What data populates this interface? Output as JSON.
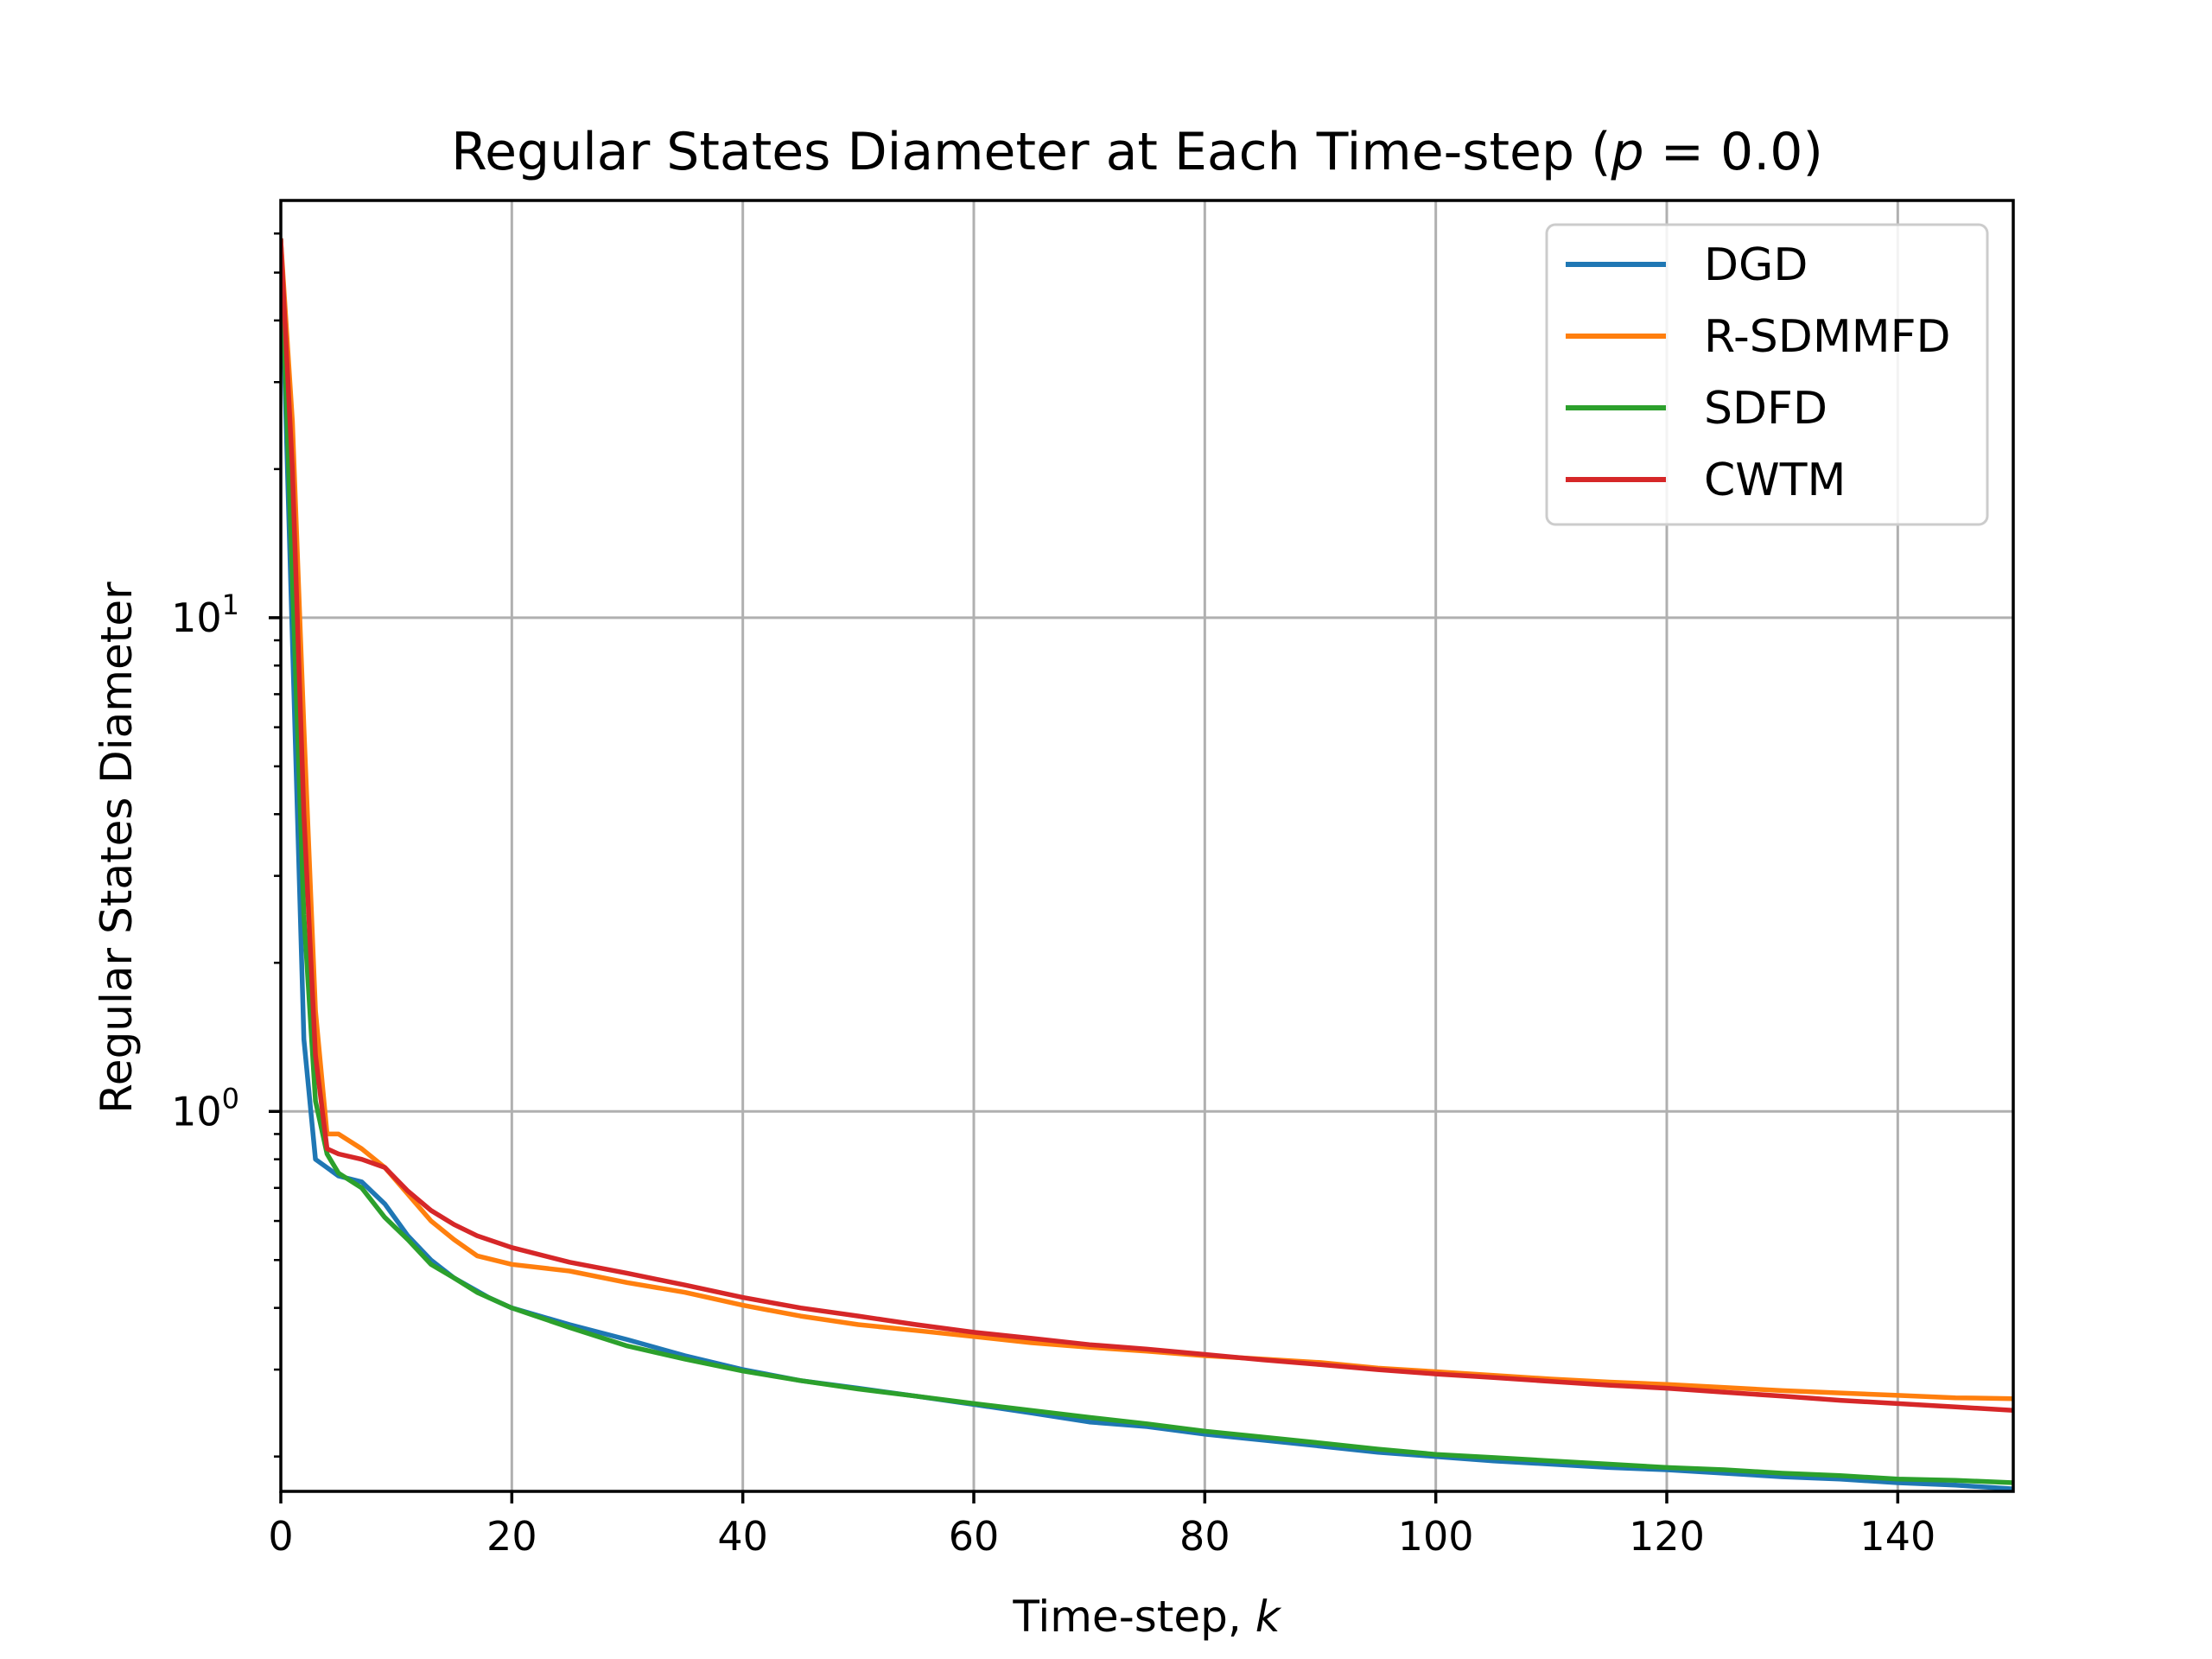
{
  "chart_data": {
    "type": "line",
    "title": {
      "before": "Regular States Diameter at Each Time-step (",
      "italic": "p",
      "after": " = 0.0)"
    },
    "xlabel": {
      "text": "Time-step, ",
      "italic": "k"
    },
    "ylabel": "Regular States Diameter",
    "xlim": [
      0,
      150
    ],
    "ylim": [
      0.17,
      70
    ],
    "yscale": "log",
    "grid": true,
    "legend_position": "top-right",
    "xticks": [
      {
        "value": 0,
        "label": "0"
      },
      {
        "value": 20,
        "label": "20"
      },
      {
        "value": 40,
        "label": "40"
      },
      {
        "value": 60,
        "label": "60"
      },
      {
        "value": 80,
        "label": "80"
      },
      {
        "value": 100,
        "label": "100"
      },
      {
        "value": 120,
        "label": "120"
      },
      {
        "value": 140,
        "label": "140"
      }
    ],
    "yticks": [
      {
        "value": 1,
        "base": "10",
        "exp": "0"
      },
      {
        "value": 10,
        "base": "10",
        "exp": "1"
      }
    ],
    "series": [
      {
        "name": "DGD",
        "color": "#1f77b4",
        "points": [
          [
            0,
            58
          ],
          [
            1,
            9
          ],
          [
            2,
            1.4
          ],
          [
            3,
            0.8
          ],
          [
            5,
            0.74
          ],
          [
            7,
            0.72
          ],
          [
            9,
            0.65
          ],
          [
            11,
            0.56
          ],
          [
            13,
            0.5
          ],
          [
            15,
            0.46
          ],
          [
            18,
            0.42
          ],
          [
            20,
            0.4
          ],
          [
            25,
            0.37
          ],
          [
            30,
            0.345
          ],
          [
            35,
            0.32
          ],
          [
            40,
            0.3
          ],
          [
            45,
            0.285
          ],
          [
            50,
            0.275
          ],
          [
            55,
            0.265
          ],
          [
            60,
            0.255
          ],
          [
            65,
            0.245
          ],
          [
            70,
            0.235
          ],
          [
            75,
            0.23
          ],
          [
            80,
            0.222
          ],
          [
            85,
            0.216
          ],
          [
            90,
            0.21
          ],
          [
            95,
            0.204
          ],
          [
            100,
            0.2
          ],
          [
            105,
            0.196
          ],
          [
            110,
            0.193
          ],
          [
            115,
            0.19
          ],
          [
            120,
            0.188
          ],
          [
            125,
            0.185
          ],
          [
            130,
            0.182
          ],
          [
            135,
            0.18
          ],
          [
            140,
            0.177
          ],
          [
            145,
            0.175
          ],
          [
            150,
            0.172
          ]
        ]
      },
      {
        "name": "R-SDMMFD",
        "color": "#ff7f0e",
        "points": [
          [
            0,
            58
          ],
          [
            1,
            25
          ],
          [
            2,
            6
          ],
          [
            3,
            1.6
          ],
          [
            4,
            0.9
          ],
          [
            5,
            0.9
          ],
          [
            7,
            0.84
          ],
          [
            9,
            0.77
          ],
          [
            11,
            0.68
          ],
          [
            13,
            0.6
          ],
          [
            15,
            0.55
          ],
          [
            17,
            0.51
          ],
          [
            20,
            0.49
          ],
          [
            25,
            0.475
          ],
          [
            30,
            0.45
          ],
          [
            35,
            0.43
          ],
          [
            40,
            0.405
          ],
          [
            45,
            0.385
          ],
          [
            50,
            0.37
          ],
          [
            55,
            0.36
          ],
          [
            60,
            0.35
          ],
          [
            65,
            0.34
          ],
          [
            70,
            0.333
          ],
          [
            75,
            0.327
          ],
          [
            80,
            0.32
          ],
          [
            85,
            0.315
          ],
          [
            90,
            0.31
          ],
          [
            95,
            0.302
          ],
          [
            100,
            0.297
          ],
          [
            105,
            0.292
          ],
          [
            110,
            0.287
          ],
          [
            115,
            0.283
          ],
          [
            120,
            0.28
          ],
          [
            125,
            0.276
          ],
          [
            130,
            0.272
          ],
          [
            135,
            0.269
          ],
          [
            140,
            0.266
          ],
          [
            145,
            0.263
          ],
          [
            150,
            0.262
          ]
        ]
      },
      {
        "name": "SDFD",
        "color": "#2ca02c",
        "points": [
          [
            0,
            58
          ],
          [
            1,
            12
          ],
          [
            2,
            2.5
          ],
          [
            3,
            1.05
          ],
          [
            4,
            0.82
          ],
          [
            5,
            0.75
          ],
          [
            7,
            0.7
          ],
          [
            9,
            0.61
          ],
          [
            11,
            0.55
          ],
          [
            13,
            0.49
          ],
          [
            15,
            0.46
          ],
          [
            17,
            0.43
          ],
          [
            20,
            0.4
          ],
          [
            25,
            0.365
          ],
          [
            30,
            0.335
          ],
          [
            35,
            0.315
          ],
          [
            40,
            0.298
          ],
          [
            45,
            0.285
          ],
          [
            50,
            0.274
          ],
          [
            55,
            0.265
          ],
          [
            60,
            0.256
          ],
          [
            65,
            0.248
          ],
          [
            70,
            0.24
          ],
          [
            75,
            0.233
          ],
          [
            80,
            0.225
          ],
          [
            85,
            0.219
          ],
          [
            90,
            0.213
          ],
          [
            95,
            0.207
          ],
          [
            100,
            0.202
          ],
          [
            105,
            0.199
          ],
          [
            110,
            0.196
          ],
          [
            115,
            0.193
          ],
          [
            120,
            0.19
          ],
          [
            125,
            0.188
          ],
          [
            130,
            0.185
          ],
          [
            135,
            0.183
          ],
          [
            140,
            0.18
          ],
          [
            145,
            0.179
          ],
          [
            150,
            0.177
          ]
        ]
      },
      {
        "name": "CWTM",
        "color": "#d62728",
        "points": [
          [
            0,
            58
          ],
          [
            1,
            20
          ],
          [
            2,
            4
          ],
          [
            3,
            1.3
          ],
          [
            4,
            0.84
          ],
          [
            5,
            0.82
          ],
          [
            7,
            0.8
          ],
          [
            9,
            0.77
          ],
          [
            11,
            0.69
          ],
          [
            13,
            0.63
          ],
          [
            15,
            0.59
          ],
          [
            17,
            0.56
          ],
          [
            20,
            0.53
          ],
          [
            25,
            0.495
          ],
          [
            30,
            0.47
          ],
          [
            35,
            0.445
          ],
          [
            40,
            0.42
          ],
          [
            45,
            0.4
          ],
          [
            50,
            0.385
          ],
          [
            55,
            0.37
          ],
          [
            60,
            0.357
          ],
          [
            65,
            0.347
          ],
          [
            70,
            0.337
          ],
          [
            75,
            0.33
          ],
          [
            80,
            0.322
          ],
          [
            85,
            0.314
          ],
          [
            90,
            0.307
          ],
          [
            95,
            0.3
          ],
          [
            100,
            0.294
          ],
          [
            105,
            0.289
          ],
          [
            110,
            0.284
          ],
          [
            115,
            0.279
          ],
          [
            120,
            0.275
          ],
          [
            125,
            0.27
          ],
          [
            130,
            0.265
          ],
          [
            135,
            0.26
          ],
          [
            140,
            0.256
          ],
          [
            145,
            0.252
          ],
          [
            150,
            0.248
          ]
        ]
      }
    ]
  }
}
